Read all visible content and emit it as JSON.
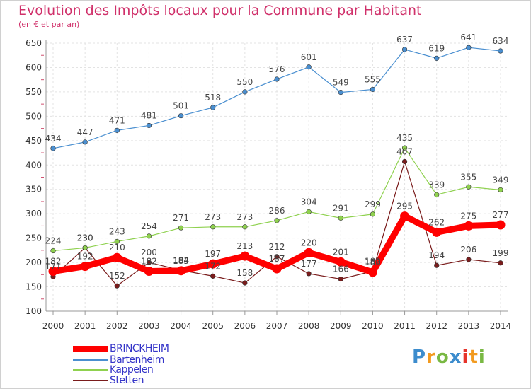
{
  "title": "Evolution des Impôts locaux pour la Commune par Habitant",
  "subtitle": "(en € et par an)",
  "logo_text": "Proxiti",
  "chart_data": {
    "type": "line",
    "x": [
      "2000",
      "2001",
      "2002",
      "2003",
      "2004",
      "2005",
      "2006",
      "2007",
      "2008",
      "2009",
      "2010",
      "2011",
      "2012",
      "2013",
      "2014"
    ],
    "ylim": [
      100,
      650
    ],
    "yticks": [
      100,
      150,
      200,
      250,
      300,
      350,
      400,
      450,
      500,
      550,
      600,
      650
    ],
    "grid": true,
    "legend": "bottom-left",
    "series": [
      {
        "name": "BRINCKHEIM",
        "color": "#ff0000",
        "values": [
          182,
          192,
          210,
          182,
          183,
          197,
          213,
          187,
          220,
          201,
          180,
          295,
          262,
          275,
          277
        ]
      },
      {
        "name": "Bartenheim",
        "color": "#4a8fd0",
        "values": [
          434,
          447,
          471,
          481,
          501,
          518,
          550,
          576,
          601,
          549,
          555,
          637,
          619,
          641,
          634
        ]
      },
      {
        "name": "Kappelen",
        "color": "#8fd14f",
        "values": [
          224,
          230,
          243,
          254,
          271,
          273,
          273,
          286,
          304,
          291,
          299,
          435,
          339,
          355,
          349
        ]
      },
      {
        "name": "Stetten",
        "color": "#7a1c1c",
        "values": [
          171,
          230,
          152,
          200,
          184,
          172,
          158,
          212,
          177,
          166,
          182,
          407,
          194,
          206,
          199
        ]
      }
    ]
  }
}
